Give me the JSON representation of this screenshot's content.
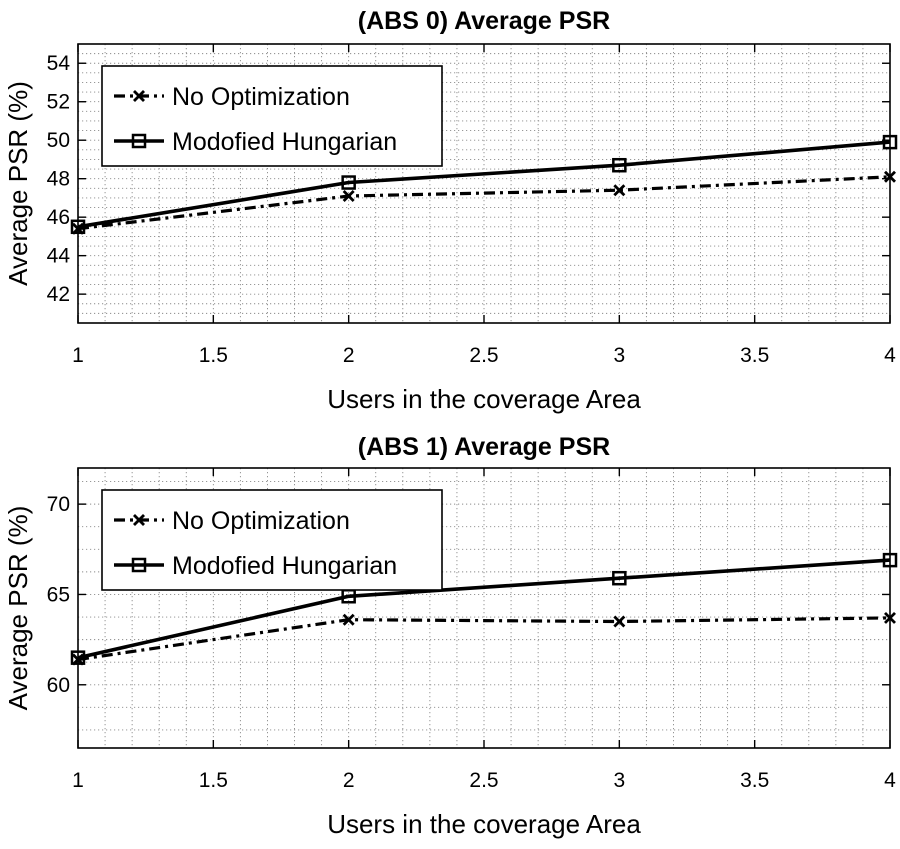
{
  "chart_data": [
    {
      "type": "line",
      "title": "(ABS 0) Average PSR",
      "xlabel": "Users in the coverage Area",
      "ylabel": "Average PSR (%)",
      "xlim": [
        1,
        4
      ],
      "ylim": [
        40.5,
        55
      ],
      "xticks": [
        1,
        1.5,
        2,
        2.5,
        3,
        3.5,
        4
      ],
      "xtick_labels": [
        "1",
        "1.5",
        "2",
        "2.5",
        "3",
        "3.5",
        "4"
      ],
      "yticks": [
        42,
        44,
        46,
        48,
        50,
        52,
        54
      ],
      "ytick_labels": [
        "42",
        "44",
        "46",
        "48",
        "50",
        "52",
        "54"
      ],
      "grid": true,
      "legend_position": "top-left",
      "series": [
        {
          "name": "No Optimization",
          "x": [
            1,
            2,
            3,
            4
          ],
          "values": [
            45.4,
            47.1,
            47.4,
            48.1
          ],
          "style": "dash-dot",
          "marker": "x"
        },
        {
          "name": "Modofied Hungarian",
          "x": [
            1,
            2,
            3,
            4
          ],
          "values": [
            45.5,
            47.8,
            48.7,
            49.9
          ],
          "style": "solid",
          "marker": "square"
        }
      ]
    },
    {
      "type": "line",
      "title": "(ABS 1) Average PSR",
      "xlabel": "Users in the coverage Area",
      "ylabel": "Average PSR (%)",
      "xlim": [
        1,
        4
      ],
      "ylim": [
        56.5,
        72
      ],
      "xticks": [
        1,
        1.5,
        2,
        2.5,
        3,
        3.5,
        4
      ],
      "xtick_labels": [
        "1",
        "1.5",
        "2",
        "2.5",
        "3",
        "3.5",
        "4"
      ],
      "yticks": [
        60,
        65,
        70
      ],
      "ytick_labels": [
        "60",
        "65",
        "70"
      ],
      "grid": true,
      "legend_position": "top-left",
      "series": [
        {
          "name": "No Optimization",
          "x": [
            1,
            2,
            3,
            4
          ],
          "values": [
            61.4,
            63.6,
            63.5,
            63.7
          ],
          "style": "dash-dot",
          "marker": "x"
        },
        {
          "name": "Modofied Hungarian",
          "x": [
            1,
            2,
            3,
            4
          ],
          "values": [
            61.5,
            64.9,
            65.9,
            66.9
          ],
          "style": "solid",
          "marker": "square"
        }
      ]
    }
  ]
}
